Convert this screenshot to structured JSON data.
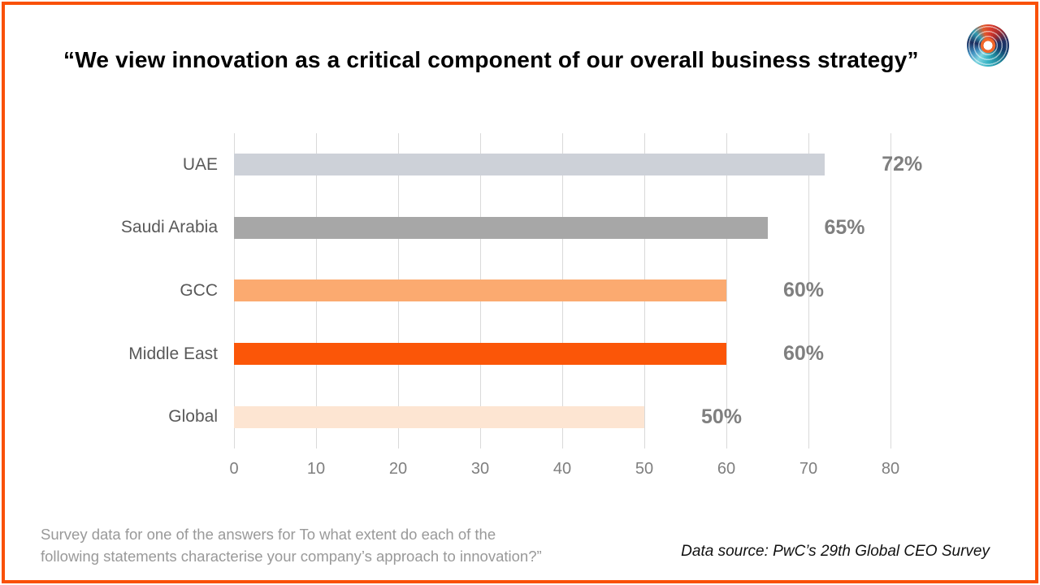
{
  "page": {
    "title": "“We view innovation as a critical component of our overall business strategy”",
    "footer_note": "Survey data for one of the answers for To what extent do each of the\nfollowing statements characterise your company’s approach to innovation?”",
    "data_source": "Data source: PwC’s 29th Global CEO Survey",
    "border_color": "#f95108"
  },
  "logo": {
    "name": "concentric-swirl-logo"
  },
  "chart_data": {
    "type": "bar",
    "orientation": "horizontal",
    "title": "“We view innovation as a critical component of our overall business strategy”",
    "categories": [
      "UAE",
      "Saudi Arabia",
      "GCC",
      "Middle East",
      "Global"
    ],
    "values": [
      72,
      65,
      60,
      60,
      50
    ],
    "value_labels": [
      "72%",
      "65%",
      "60%",
      "60%",
      "50%"
    ],
    "bar_colors": [
      "#cdd1d8",
      "#a7a7a7",
      "#fbaa70",
      "#fb5608",
      "#fde5d2"
    ],
    "x_ticks": [
      0,
      10,
      20,
      30,
      40,
      50,
      60,
      70,
      80
    ],
    "xlim": [
      0,
      80
    ],
    "xlabel": "",
    "ylabel": "",
    "grid": true,
    "legend": "none",
    "gridline_color": "#d9d9d9",
    "axis_text_color": "#7f7f7f",
    "category_text_color": "#595959",
    "value_label_color": "#7f7f7f"
  }
}
